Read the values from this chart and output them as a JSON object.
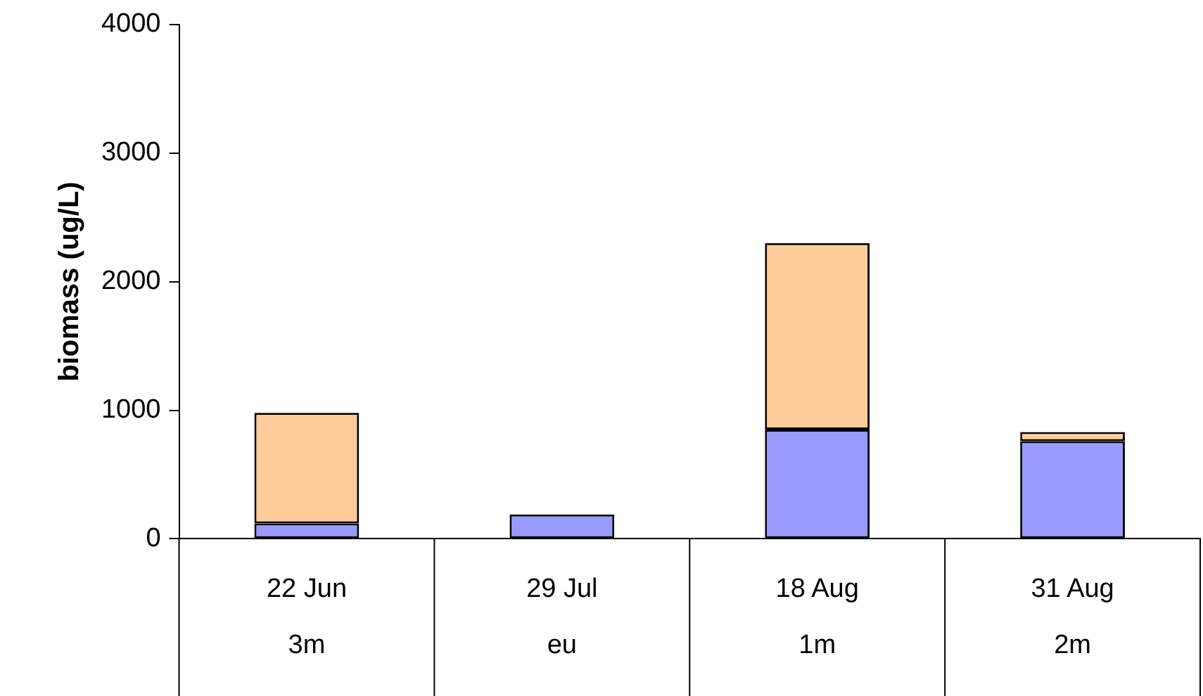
{
  "chart_data": {
    "type": "bar",
    "stacked": true,
    "ylabel": "biomass (ug/L)",
    "categories": [
      "22 Jun\n3m",
      "29 Jul\neu",
      "18 Aug\n1m",
      "31 Aug\n2m"
    ],
    "series": [
      {
        "color": "#9999ff",
        "values": [
          120,
          190,
          850,
          760
        ]
      },
      {
        "color": "#ffcc99",
        "values": [
          860,
          null,
          1450,
          70
        ]
      }
    ],
    "ylim": [
      0,
      4000
    ],
    "yticks": [
      0,
      1000,
      2000,
      3000,
      4000
    ],
    "grid": false,
    "legend": false
  }
}
